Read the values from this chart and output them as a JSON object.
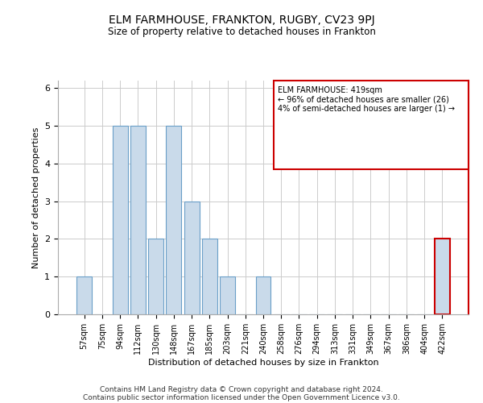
{
  "title": "ELM FARMHOUSE, FRANKTON, RUGBY, CV23 9PJ",
  "subtitle": "Size of property relative to detached houses in Frankton",
  "xlabel_bottom": "Distribution of detached houses by size in Frankton",
  "ylabel": "Number of detached properties",
  "footer1": "Contains HM Land Registry data © Crown copyright and database right 2024.",
  "footer2": "Contains public sector information licensed under the Open Government Licence v3.0.",
  "categories": [
    "57sqm",
    "75sqm",
    "94sqm",
    "112sqm",
    "130sqm",
    "148sqm",
    "167sqm",
    "185sqm",
    "203sqm",
    "221sqm",
    "240sqm",
    "258sqm",
    "276sqm",
    "294sqm",
    "313sqm",
    "331sqm",
    "349sqm",
    "367sqm",
    "386sqm",
    "404sqm",
    "422sqm"
  ],
  "values": [
    1,
    0,
    5,
    5,
    2,
    5,
    3,
    2,
    1,
    0,
    1,
    0,
    0,
    0,
    0,
    0,
    0,
    0,
    0,
    0,
    2
  ],
  "bar_color": "#c9daea",
  "bar_edge_color": "#6a9fc8",
  "highlight_bar_index": 20,
  "highlight_bar_edge_color": "#cc0000",
  "annotation_line1": "ELM FARMHOUSE: 419sqm",
  "annotation_line2": "← 96% of detached houses are smaller (26)",
  "annotation_line3": "4% of semi-detached houses are larger (1) →",
  "annotation_box_edge_color": "#cc0000",
  "ylim": [
    0,
    6.2
  ],
  "yticks": [
    0,
    1,
    2,
    3,
    4,
    5,
    6
  ],
  "grid_color": "#cccccc",
  "figsize": [
    6.0,
    5.0
  ],
  "dpi": 100
}
